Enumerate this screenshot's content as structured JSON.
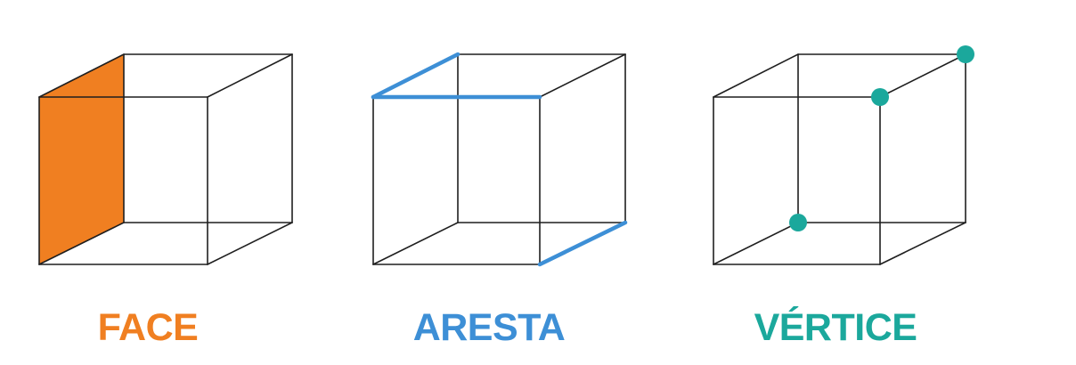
{
  "panels": [
    {
      "id": "face",
      "label": "FACE",
      "highlight": "face",
      "color": "#F07F21"
    },
    {
      "id": "aresta",
      "label": "ARESTA",
      "highlight": "edges",
      "color": "#3D8FD6"
    },
    {
      "id": "vertice",
      "label": "VÉRTICE",
      "highlight": "vertices",
      "color": "#1BA89C"
    }
  ],
  "edge_color": "#1f1f1f"
}
